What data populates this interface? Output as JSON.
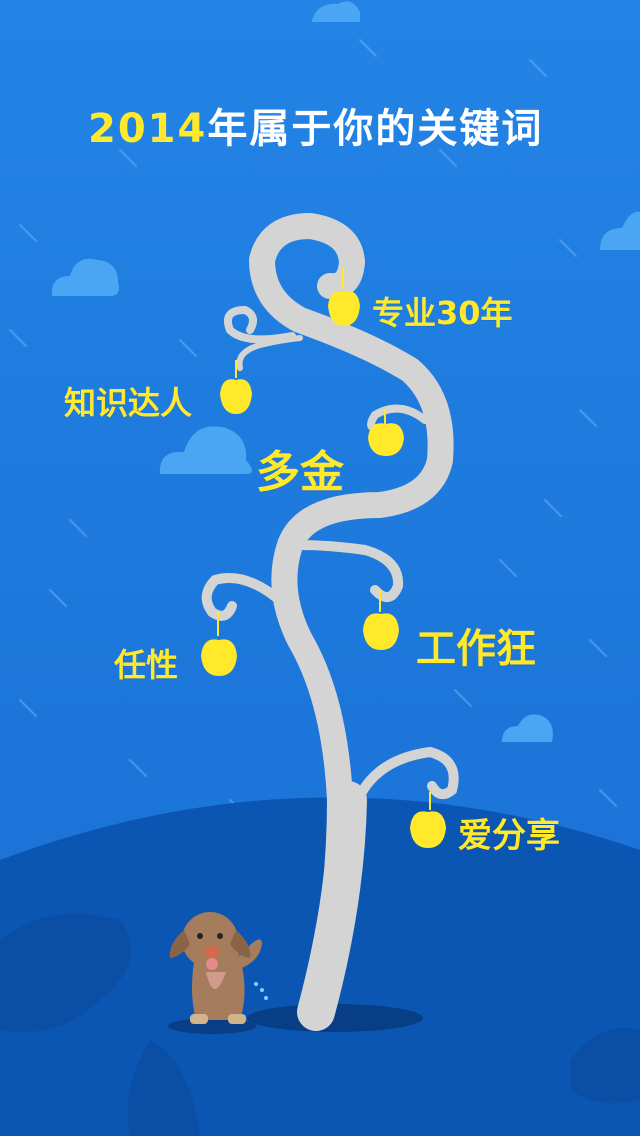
{
  "title": {
    "year": "2014",
    "text": "年属于你的关键词"
  },
  "keywords": [
    {
      "id": "zhuanye",
      "label": "专业30年"
    },
    {
      "id": "zhishi",
      "label": "知识达人"
    },
    {
      "id": "duojin",
      "label": "多金"
    },
    {
      "id": "gongzuo",
      "label": "工作狂"
    },
    {
      "id": "renxing",
      "label": "任性"
    },
    {
      "id": "aifenxiang",
      "label": "爱分享"
    }
  ],
  "colors": {
    "background": "#1f7fe0",
    "accent": "#ffe92a",
    "tree": "#d4d4d4",
    "hill": "#0c56b3"
  }
}
